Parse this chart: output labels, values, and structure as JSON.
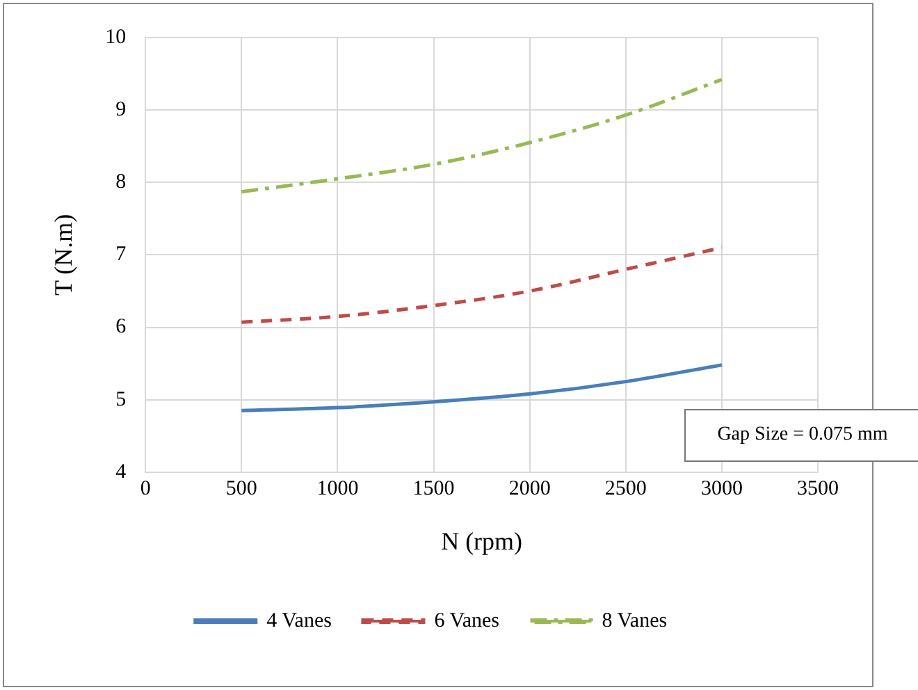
{
  "chart_data": {
    "type": "line",
    "xlabel": "N (rpm)",
    "ylabel": "T (N.m)",
    "x": [
      500,
      1000,
      1500,
      2000,
      2500,
      3000
    ],
    "series": [
      {
        "name": "4 Vanes",
        "color": "#4a7ebb",
        "values": [
          4.85,
          4.89,
          4.97,
          5.08,
          5.25,
          5.48
        ],
        "line_style": "solid"
      },
      {
        "name": "6 Vanes",
        "color": "#be4b48",
        "values": [
          6.07,
          6.15,
          6.3,
          6.5,
          6.8,
          7.1
        ],
        "line_style": "dashed"
      },
      {
        "name": "8 Vanes",
        "color": "#98b954",
        "values": [
          7.87,
          8.05,
          8.25,
          8.55,
          8.93,
          9.42
        ],
        "line_style": "dashdot"
      }
    ],
    "xlim": [
      0,
      3500
    ],
    "xticks": [
      0,
      500,
      1000,
      1500,
      2000,
      2500,
      3000,
      3500
    ],
    "ylim": [
      4,
      10
    ],
    "yticks": [
      4,
      5,
      6,
      7,
      8,
      9,
      10
    ],
    "grid": true,
    "legend": "bottom",
    "marker": "none",
    "annotations": [
      "Gap Size = 0.075 mm"
    ]
  }
}
